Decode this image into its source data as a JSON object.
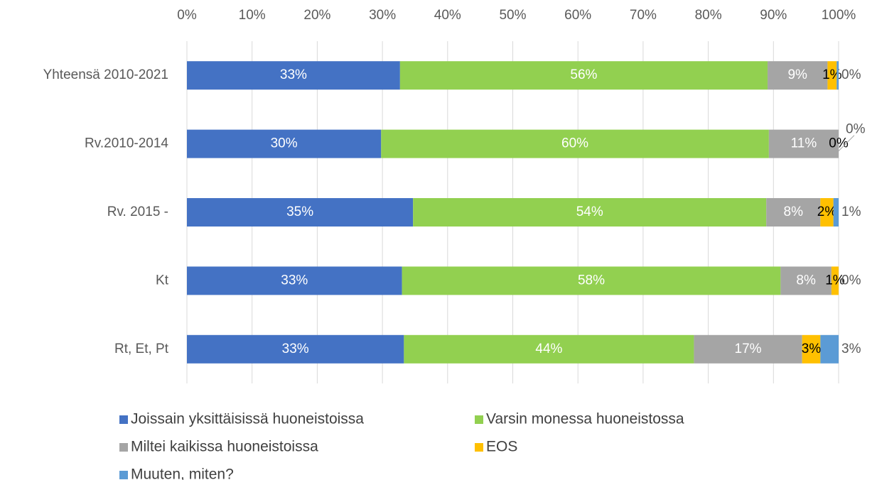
{
  "chart_data": {
    "type": "stacked-bar-horizontal",
    "categories": [
      "Yhteensä 2010-2021",
      "Rv.2010-2014",
      "Rv. 2015 -",
      "Kt",
      "Rt, Et, Pt"
    ],
    "series": [
      {
        "name": "Joissain yksittäisissä huoneistoissa",
        "color": "#4472c4",
        "values": [
          32.7,
          29.8,
          34.7,
          33.0,
          33.3
        ],
        "value_labels": [
          "33%",
          "30%",
          "35%",
          "33%",
          "33%"
        ]
      },
      {
        "name": "Varsin monessa huoneistossa",
        "color": "#92d050",
        "values": [
          56.4,
          59.5,
          54.2,
          58.1,
          44.5
        ],
        "value_labels": [
          "56%",
          "60%",
          "54%",
          "58%",
          "44%"
        ]
      },
      {
        "name": "Miltei kaikissa huoneistoissa",
        "color": "#a5a5a5",
        "values": [
          9.2,
          10.7,
          8.3,
          7.8,
          16.6
        ],
        "value_labels": [
          "9%",
          "11%",
          "8%",
          "8%",
          "17%"
        ]
      },
      {
        "name": "EOS",
        "color": "#ffc000",
        "values": [
          1.4,
          0,
          2.0,
          1.1,
          2.8
        ],
        "value_labels": [
          "1%",
          "0%",
          "2%",
          "1%",
          "3%"
        ]
      },
      {
        "name": "Muuten, miten?",
        "color": "#5b9bd5",
        "values": [
          0.3,
          0,
          0.8,
          0,
          2.8
        ],
        "value_labels": [
          "0%",
          "0%",
          "1%",
          "0%",
          "3%"
        ]
      }
    ],
    "xlim": [
      0,
      100
    ],
    "xticks": [
      {
        "value": 0,
        "label": "0%"
      },
      {
        "value": 10,
        "label": "10%"
      },
      {
        "value": 20,
        "label": "20%"
      },
      {
        "value": 30,
        "label": "30%"
      },
      {
        "value": 40,
        "label": "40%"
      },
      {
        "value": 50,
        "label": "50%"
      },
      {
        "value": 60,
        "label": "60%"
      },
      {
        "value": 70,
        "label": "70%"
      },
      {
        "value": 80,
        "label": "80%"
      },
      {
        "value": 90,
        "label": "90%"
      },
      {
        "value": 100,
        "label": "100%"
      }
    ],
    "grid": true,
    "legend": "bottom"
  }
}
